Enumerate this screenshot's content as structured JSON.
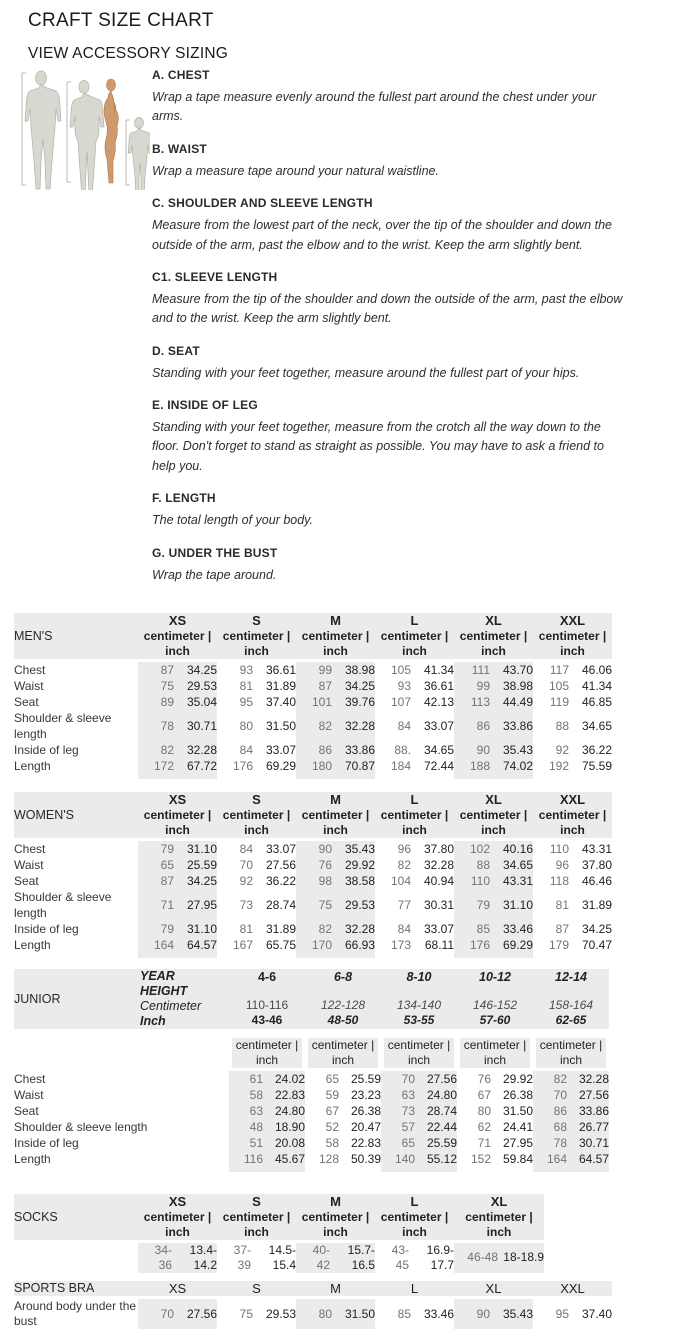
{
  "page": {
    "title": "CRAFT SIZE CHART",
    "subtitle_link": "VIEW ACCESSORY SIZING"
  },
  "colors": {
    "table_stripe": "#ebebeb",
    "cm_text": "#72727c",
    "inch_text": "#1f1f23"
  },
  "unit_header": {
    "line1": "centimeter |",
    "line2": "inch"
  },
  "measurements": [
    {
      "heading": "A. CHEST",
      "description": "Wrap a tape measure evenly around the fullest part around the chest under your arms."
    },
    {
      "heading": "B. WAIST",
      "description": "Wrap a measure tape around your natural waistline."
    },
    {
      "heading": "C. SHOULDER AND SLEEVE LENGTH",
      "description": "Measure from the lowest part of the neck, over the tip of the shoulder and down the outside of the arm, past the elbow and to the wrist. Keep the arm slightly bent."
    },
    {
      "heading": "C1. SLEEVE LENGTH",
      "description": "Measure from the tip of the shoulder and down the outside of the arm, past the elbow and to the wrist. Keep the arm slightly bent."
    },
    {
      "heading": "D. SEAT",
      "description": "Standing with your feet together, measure around the fullest part of your hips."
    },
    {
      "heading": "E. INSIDE OF LEG",
      "description": "Standing with your feet together, measure from the crotch all the way down to the floor. Don't forget to stand as straight as possible. You may have to ask a friend to help you."
    },
    {
      "heading": "F. LENGTH",
      "description": "The total length of your body."
    },
    {
      "heading": "G. UNDER THE BUST",
      "description": "Wrap the tape around."
    }
  ],
  "tables": {
    "mens": {
      "label": "MEN'S",
      "sizes": [
        "XS",
        "S",
        "M",
        "L",
        "XL",
        "XXL"
      ],
      "rows": [
        {
          "label": "Chest",
          "values": [
            [
              "87",
              "34.25"
            ],
            [
              "93",
              "36.61"
            ],
            [
              "99",
              "38.98"
            ],
            [
              "105",
              "41.34"
            ],
            [
              "111",
              "43.70"
            ],
            [
              "117",
              "46.06"
            ]
          ]
        },
        {
          "label": "Waist",
          "values": [
            [
              "75",
              "29.53"
            ],
            [
              "81",
              "31.89"
            ],
            [
              "87",
              "34.25"
            ],
            [
              "93",
              "36.61"
            ],
            [
              "99",
              "38.98"
            ],
            [
              "105",
              "41.34"
            ]
          ]
        },
        {
          "label": "Seat",
          "values": [
            [
              "89",
              "35.04"
            ],
            [
              "95",
              "37.40"
            ],
            [
              "101",
              "39.76"
            ],
            [
              "107",
              "42.13"
            ],
            [
              "113",
              "44.49"
            ],
            [
              "119",
              "46.85"
            ]
          ]
        },
        {
          "label": "Shoulder & sleeve length",
          "values": [
            [
              "78",
              "30.71"
            ],
            [
              "80",
              "31.50"
            ],
            [
              "82",
              "32.28"
            ],
            [
              "84",
              "33.07"
            ],
            [
              "86",
              "33.86"
            ],
            [
              "88",
              "34.65"
            ]
          ]
        },
        {
          "label": "Inside of leg",
          "values": [
            [
              "82",
              "32.28"
            ],
            [
              "84",
              "33.07"
            ],
            [
              "86",
              "33.86"
            ],
            [
              "88.",
              "34.65"
            ],
            [
              "90",
              "35.43"
            ],
            [
              "92",
              "36.22"
            ]
          ]
        },
        {
          "label": "Length",
          "values": [
            [
              "172",
              "67.72"
            ],
            [
              "176",
              "69.29"
            ],
            [
              "180",
              "70.87"
            ],
            [
              "184",
              "72.44"
            ],
            [
              "188",
              "74.02"
            ],
            [
              "192",
              "75.59"
            ]
          ]
        }
      ]
    },
    "womens": {
      "label": "WOMEN'S",
      "sizes": [
        "XS",
        "S",
        "M",
        "L",
        "XL",
        "XXL"
      ],
      "rows": [
        {
          "label": "Chest",
          "values": [
            [
              "79",
              "31.10"
            ],
            [
              "84",
              "33.07"
            ],
            [
              "90",
              "35.43"
            ],
            [
              "96",
              "37.80"
            ],
            [
              "102",
              "40.16"
            ],
            [
              "110",
              "43.31"
            ]
          ]
        },
        {
          "label": "Waist",
          "values": [
            [
              "65",
              "25.59"
            ],
            [
              "70",
              "27.56"
            ],
            [
              "76",
              "29.92"
            ],
            [
              "82",
              "32.28"
            ],
            [
              "88",
              "34.65"
            ],
            [
              "96",
              "37.80"
            ]
          ]
        },
        {
          "label": "Seat",
          "values": [
            [
              "87",
              "34.25"
            ],
            [
              "92",
              "36.22"
            ],
            [
              "98",
              "38.58"
            ],
            [
              "104",
              "40.94"
            ],
            [
              "110",
              "43.31"
            ],
            [
              "118",
              "46.46"
            ]
          ]
        },
        {
          "label": "Shoulder & sleeve length",
          "values": [
            [
              "71",
              "27.95"
            ],
            [
              "73",
              "28.74"
            ],
            [
              "75",
              "29.53"
            ],
            [
              "77",
              "30.31"
            ],
            [
              "79",
              "31.10"
            ],
            [
              "81",
              "31.89"
            ]
          ]
        },
        {
          "label": "Inside of leg",
          "values": [
            [
              "79",
              "31.10"
            ],
            [
              "81",
              "31.89"
            ],
            [
              "82",
              "32.28"
            ],
            [
              "84",
              "33.07"
            ],
            [
              "85",
              "33.46"
            ],
            [
              "87",
              "34.25"
            ]
          ]
        },
        {
          "label": "Length",
          "values": [
            [
              "164",
              "64.57"
            ],
            [
              "167",
              "65.75"
            ],
            [
              "170",
              "66.93"
            ],
            [
              "173",
              "68.11"
            ],
            [
              "176",
              "69.29"
            ],
            [
              "179",
              "70.47"
            ]
          ]
        }
      ]
    },
    "junior": {
      "label": "JUNIOR",
      "col_header": {
        "title_lines": [
          "YEAR",
          "HEIGHT"
        ],
        "cm_label": "Centimeter",
        "inch_label": "Inch"
      },
      "age_groups": [
        {
          "years": "4-6",
          "cm": "110-116",
          "inch": "43-46",
          "italic": false
        },
        {
          "years": "6-8",
          "cm": "122-128",
          "inch": "48-50",
          "italic": true
        },
        {
          "years": "8-10",
          "cm": "134-140",
          "inch": "53-55",
          "italic": true
        },
        {
          "years": "10-12",
          "cm": "146-152",
          "inch": "57-60",
          "italic": true
        },
        {
          "years": "12-14",
          "cm": "158-164",
          "inch": "62-65",
          "italic": true
        }
      ],
      "rows": [
        {
          "label": "Chest",
          "values": [
            [
              "61",
              "24.02"
            ],
            [
              "65",
              "25.59"
            ],
            [
              "70",
              "27.56"
            ],
            [
              "76",
              "29.92"
            ],
            [
              "82",
              "32.28"
            ]
          ]
        },
        {
          "label": "Waist",
          "values": [
            [
              "58",
              "22.83"
            ],
            [
              "59",
              "23.23"
            ],
            [
              "63",
              "24.80"
            ],
            [
              "67",
              "26.38"
            ],
            [
              "70",
              "27.56"
            ]
          ]
        },
        {
          "label": "Seat",
          "values": [
            [
              "63",
              "24.80"
            ],
            [
              "67",
              "26.38"
            ],
            [
              "73",
              "28.74"
            ],
            [
              "80",
              "31.50"
            ],
            [
              "86",
              "33.86"
            ]
          ]
        },
        {
          "label": "Shoulder & sleeve length",
          "values": [
            [
              "48",
              "18.90"
            ],
            [
              "52",
              "20.47"
            ],
            [
              "57",
              "22.44"
            ],
            [
              "62",
              "24.41"
            ],
            [
              "68",
              "26.77"
            ]
          ]
        },
        {
          "label": "Inside of leg",
          "values": [
            [
              "51",
              "20.08"
            ],
            [
              "58",
              "22.83"
            ],
            [
              "65",
              "25.59"
            ],
            [
              "71",
              "27.95"
            ],
            [
              "78",
              "30.71"
            ]
          ]
        },
        {
          "label": "Length",
          "values": [
            [
              "116",
              "45.67"
            ],
            [
              "128",
              "50.39"
            ],
            [
              "140",
              "55.12"
            ],
            [
              "152",
              "59.84"
            ],
            [
              "164",
              "64.57"
            ]
          ]
        }
      ]
    },
    "socks": {
      "label": "SOCKS",
      "sizes": [
        "XS",
        "S",
        "M",
        "L",
        "XL"
      ],
      "values": [
        {
          "cm_lines": [
            "34-",
            "36"
          ],
          "inch": "13.4-14.2"
        },
        {
          "cm_lines": [
            "37-",
            "39"
          ],
          "inch": "14.5-15.4"
        },
        {
          "cm_lines": [
            "40-",
            "42"
          ],
          "inch": "15.7-16.5"
        },
        {
          "cm_lines": [
            "43-",
            "45"
          ],
          "inch": "16.9-17.7"
        },
        {
          "cm_lines": [
            "46-48"
          ],
          "inch": "18-18.9"
        }
      ]
    },
    "sports_bra": {
      "label": "SPORTS BRA",
      "sizes": [
        "XS",
        "S",
        "M",
        "L",
        "XL",
        "XXL"
      ],
      "row_label": "Around body under the bust",
      "values": [
        [
          "70",
          "27.56"
        ],
        [
          "75",
          "29.53"
        ],
        [
          "80",
          "31.50"
        ],
        [
          "85",
          "33.46"
        ],
        [
          "90",
          "35.43"
        ],
        [
          "95",
          "37.40"
        ]
      ]
    }
  }
}
